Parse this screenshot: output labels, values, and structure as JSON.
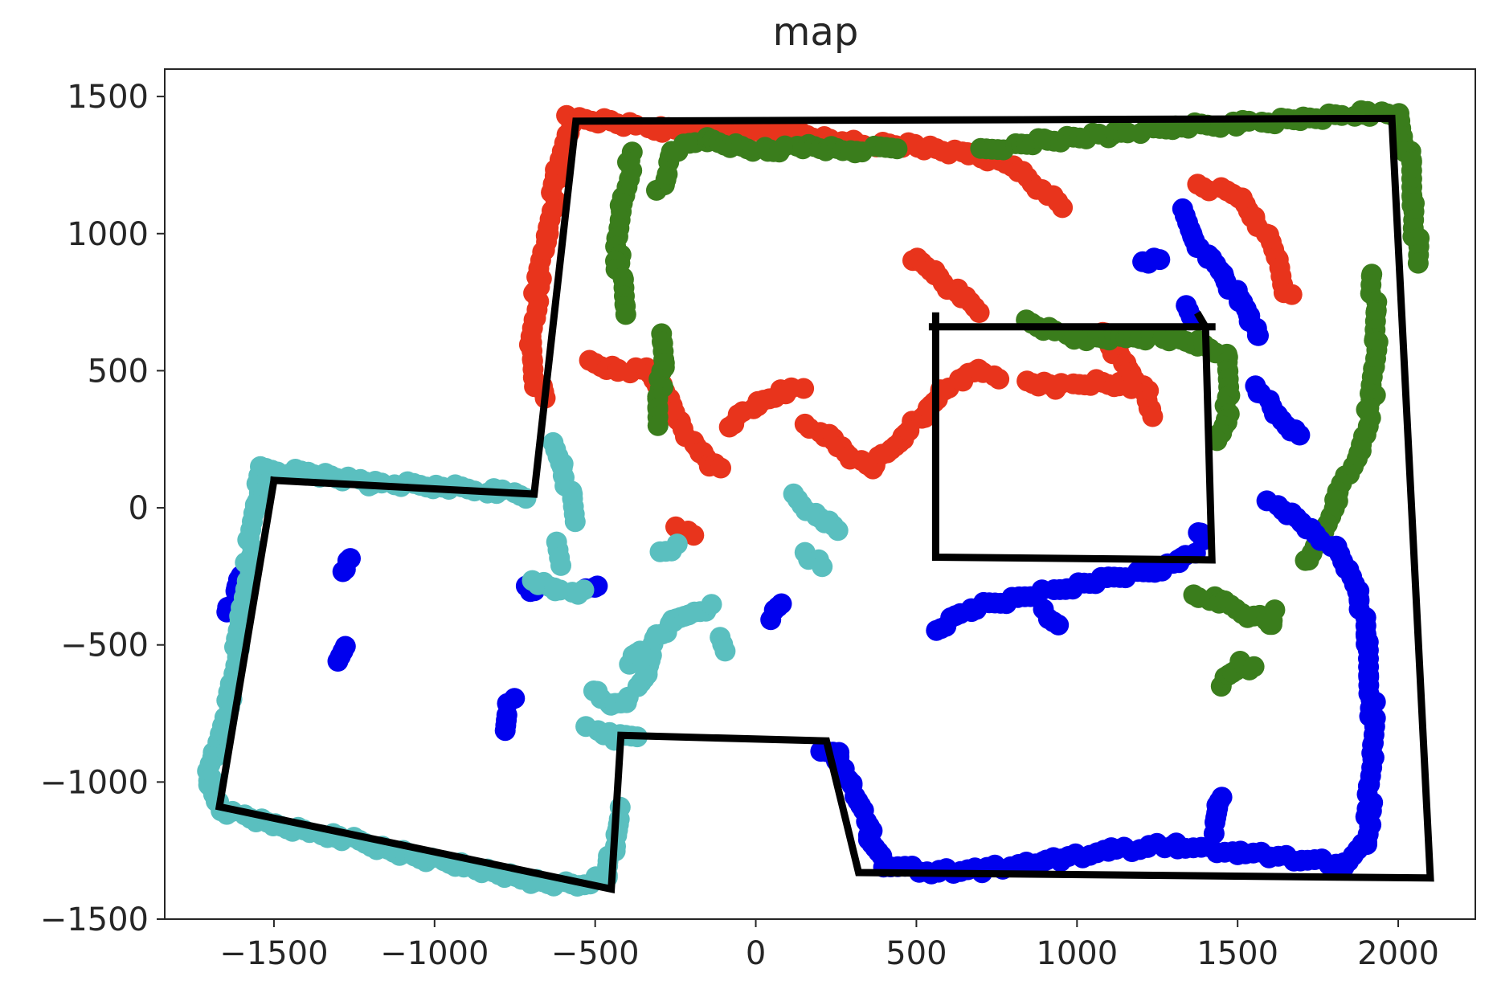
{
  "chart_data": {
    "type": "scatter",
    "title": "map",
    "xlabel": "",
    "ylabel": "",
    "xlim": [
      -1840,
      2240
    ],
    "ylim": [
      -1500,
      1600
    ],
    "xticks": [
      -1500,
      -1000,
      -500,
      0,
      500,
      1000,
      1500,
      2000
    ],
    "yticks": [
      1500,
      1000,
      500,
      0,
      -500,
      -1000,
      -1500
    ],
    "xtick_labels": [
      "−1500",
      "−1000",
      "−500",
      "0",
      "500",
      "1000",
      "1500",
      "2000"
    ],
    "ytick_labels": [
      "1500",
      "1000",
      "500",
      "0",
      "−500",
      "−1000",
      "−1500"
    ],
    "grid": false,
    "series": [
      {
        "color": "#e8341c",
        "trails": [
          [
            [
              -580,
              1420
            ],
            [
              -450,
              1410
            ],
            [
              -300,
              1380
            ],
            [
              -100,
              1370
            ],
            [
              100,
              1370
            ],
            [
              300,
              1330
            ],
            [
              500,
              1320
            ],
            [
              650,
              1290
            ],
            [
              800,
              1250
            ],
            [
              900,
              1150
            ],
            [
              950,
              1100
            ]
          ],
          [
            [
              -580,
              1400
            ],
            [
              -620,
              1200
            ],
            [
              -650,
              1000
            ],
            [
              -680,
              800
            ],
            [
              -700,
              600
            ],
            [
              -680,
              450
            ],
            [
              -660,
              400
            ]
          ],
          [
            [
              -520,
              530
            ],
            [
              -420,
              500
            ],
            [
              -340,
              500
            ],
            [
              -300,
              450
            ],
            [
              -240,
              330
            ],
            [
              -200,
              240
            ],
            [
              -140,
              160
            ],
            [
              -100,
              140
            ]
          ],
          [
            [
              -80,
              300
            ],
            [
              0,
              380
            ],
            [
              80,
              420
            ],
            [
              140,
              430
            ]
          ],
          [
            [
              160,
              300
            ],
            [
              240,
              250
            ],
            [
              300,
              180
            ],
            [
              360,
              150
            ],
            [
              400,
              190
            ],
            [
              460,
              260
            ],
            [
              520,
              340
            ],
            [
              580,
              420
            ],
            [
              640,
              470
            ],
            [
              700,
              500
            ],
            [
              750,
              480
            ]
          ],
          [
            [
              480,
              910
            ],
            [
              560,
              860
            ],
            [
              620,
              790
            ],
            [
              700,
              720
            ]
          ],
          [
            [
              840,
              460
            ],
            [
              940,
              440
            ],
            [
              1060,
              460
            ],
            [
              1140,
              450
            ],
            [
              1220,
              430
            ]
          ],
          [
            [
              1080,
              650
            ],
            [
              1120,
              570
            ],
            [
              1160,
              500
            ],
            [
              1200,
              440
            ],
            [
              1240,
              330
            ]
          ],
          [
            [
              1380,
              1180
            ],
            [
              1500,
              1140
            ],
            [
              1560,
              1050
            ],
            [
              1620,
              920
            ],
            [
              1660,
              770
            ]
          ],
          [
            [
              -240,
              -80
            ],
            [
              -200,
              -100
            ]
          ]
        ]
      },
      {
        "color": "#3a7d1c",
        "trails": [
          [
            [
              700,
              1300
            ],
            [
              900,
              1340
            ],
            [
              1100,
              1360
            ],
            [
              1300,
              1390
            ],
            [
              1500,
              1400
            ],
            [
              1700,
              1420
            ],
            [
              1900,
              1440
            ],
            [
              2000,
              1430
            ],
            [
              2030,
              1300
            ],
            [
              2050,
              1100
            ],
            [
              2060,
              900
            ]
          ],
          [
            [
              -380,
              1300
            ],
            [
              -420,
              1100
            ],
            [
              -430,
              900
            ],
            [
              -400,
              700
            ]
          ],
          [
            [
              -300,
              1150
            ],
            [
              -260,
              1300
            ],
            [
              -160,
              1340
            ],
            [
              40,
              1300
            ],
            [
              140,
              1320
            ],
            [
              300,
              1300
            ],
            [
              440,
              1320
            ]
          ],
          [
            [
              -300,
              640
            ],
            [
              -280,
              520
            ],
            [
              -310,
              400
            ],
            [
              -300,
              300
            ]
          ],
          [
            [
              840,
              680
            ],
            [
              1000,
              620
            ],
            [
              1160,
              620
            ],
            [
              1260,
              620
            ],
            [
              1380,
              600
            ],
            [
              1460,
              560
            ],
            [
              1480,
              420
            ],
            [
              1460,
              320
            ],
            [
              1440,
              240
            ]
          ],
          [
            [
              1920,
              860
            ],
            [
              1930,
              600
            ],
            [
              1920,
              400
            ],
            [
              1880,
              200
            ],
            [
              1820,
              60
            ],
            [
              1760,
              -100
            ],
            [
              1720,
              -200
            ]
          ],
          [
            [
              1370,
              -320
            ],
            [
              1440,
              -340
            ],
            [
              1560,
              -400
            ],
            [
              1600,
              -420
            ],
            [
              1620,
              -380
            ]
          ],
          [
            [
              1440,
              -640
            ],
            [
              1510,
              -570
            ],
            [
              1560,
              -590
            ]
          ]
        ]
      },
      {
        "color": "#0000ee",
        "trails": [
          [
            [
              1320,
              1080
            ],
            [
              1360,
              1000
            ],
            [
              1400,
              920
            ],
            [
              1460,
              850
            ],
            [
              1500,
              760
            ],
            [
              1540,
              700
            ],
            [
              1560,
              620
            ]
          ],
          [
            [
              1200,
              900
            ],
            [
              1260,
              900
            ]
          ],
          [
            [
              1340,
              730
            ],
            [
              1360,
              700
            ]
          ],
          [
            [
              1560,
              450
            ],
            [
              1620,
              330
            ],
            [
              1700,
              260
            ]
          ],
          [
            [
              1600,
              20
            ],
            [
              1700,
              -50
            ],
            [
              1800,
              -150
            ],
            [
              1880,
              -300
            ],
            [
              1900,
              -500
            ],
            [
              1920,
              -700
            ],
            [
              1920,
              -900
            ],
            [
              1910,
              -1100
            ],
            [
              1900,
              -1220
            ],
            [
              1840,
              -1300
            ],
            [
              1700,
              -1280
            ],
            [
              1500,
              -1260
            ],
            [
              1300,
              -1230
            ],
            [
              1100,
              -1250
            ],
            [
              900,
              -1290
            ],
            [
              700,
              -1320
            ],
            [
              540,
              -1330
            ],
            [
              400,
              -1300
            ],
            [
              360,
              -1200
            ],
            [
              300,
              -1000
            ],
            [
              250,
              -900
            ],
            [
              200,
              -880
            ]
          ],
          [
            [
              1420,
              -1180
            ],
            [
              1440,
              -1090
            ],
            [
              1460,
              -1050
            ]
          ],
          [
            [
              560,
              -450
            ],
            [
              680,
              -360
            ],
            [
              820,
              -330
            ],
            [
              960,
              -290
            ],
            [
              1100,
              -260
            ],
            [
              1240,
              -230
            ],
            [
              1320,
              -200
            ],
            [
              1360,
              -160
            ]
          ],
          [
            [
              1380,
              -80
            ],
            [
              1400,
              -120
            ]
          ],
          [
            [
              -1640,
              -380
            ],
            [
              -1620,
              -290
            ],
            [
              -1600,
              -250
            ]
          ],
          [
            [
              -1310,
              -570
            ],
            [
              -1280,
              -500
            ]
          ],
          [
            [
              -1290,
              -230
            ],
            [
              -1260,
              -190
            ]
          ],
          [
            [
              -780,
              -820
            ],
            [
              -760,
              -700
            ]
          ],
          [
            [
              -710,
              -280
            ],
            [
              -680,
              -310
            ]
          ],
          [
            [
              -520,
              -300
            ],
            [
              -500,
              -280
            ]
          ],
          [
            [
              40,
              -400
            ],
            [
              80,
              -350
            ]
          ],
          [
            [
              940,
              -430
            ],
            [
              900,
              -380
            ]
          ]
        ]
      },
      {
        "color": "#5abfbf",
        "trails": [
          [
            [
              -1540,
              140
            ],
            [
              -1400,
              130
            ],
            [
              -1200,
              90
            ],
            [
              -1000,
              80
            ],
            [
              -800,
              60
            ],
            [
              -720,
              40
            ]
          ],
          [
            [
              -1540,
              120
            ],
            [
              -1560,
              0
            ],
            [
              -1580,
              -200
            ],
            [
              -1600,
              -400
            ],
            [
              -1640,
              -700
            ],
            [
              -1680,
              -900
            ],
            [
              -1710,
              -1000
            ],
            [
              -1660,
              -1100
            ],
            [
              -1500,
              -1160
            ],
            [
              -1300,
              -1200
            ],
            [
              -1100,
              -1260
            ],
            [
              -900,
              -1310
            ],
            [
              -700,
              -1360
            ],
            [
              -560,
              -1380
            ],
            [
              -460,
              -1340
            ],
            [
              -440,
              -1200
            ],
            [
              -420,
              -1100
            ]
          ],
          [
            [
              -640,
              230
            ],
            [
              -600,
              150
            ],
            [
              -580,
              50
            ],
            [
              -560,
              -40
            ]
          ],
          [
            [
              -700,
              -260
            ],
            [
              -620,
              -300
            ],
            [
              -540,
              -310
            ]
          ],
          [
            [
              -620,
              -130
            ],
            [
              -600,
              -200
            ]
          ],
          [
            [
              -500,
              -660
            ],
            [
              -460,
              -720
            ],
            [
              -400,
              -700
            ],
            [
              -340,
              -600
            ],
            [
              -300,
              -460
            ],
            [
              -260,
              -420
            ],
            [
              -200,
              -380
            ],
            [
              -140,
              -360
            ]
          ],
          [
            [
              -520,
              -800
            ],
            [
              -440,
              -840
            ],
            [
              -360,
              -830
            ]
          ],
          [
            [
              -400,
              -560
            ],
            [
              -360,
              -520
            ]
          ],
          [
            [
              -300,
              -160
            ],
            [
              -240,
              -140
            ]
          ],
          [
            [
              120,
              40
            ],
            [
              180,
              -20
            ],
            [
              260,
              -80
            ]
          ],
          [
            [
              160,
              -160
            ],
            [
              200,
              -220
            ]
          ],
          [
            [
              -120,
              -480
            ],
            [
              -100,
              -520
            ]
          ]
        ]
      }
    ],
    "outline": {
      "color": "#000000",
      "polylines": [
        [
          [
            -1500,
            100
          ],
          [
            -690,
            50
          ],
          [
            -560,
            1410
          ],
          [
            1980,
            1420
          ],
          [
            2100,
            -1350
          ],
          [
            320,
            -1330
          ],
          [
            220,
            -850
          ],
          [
            -420,
            -830
          ],
          [
            -450,
            -1390
          ],
          [
            -1670,
            -1090
          ],
          [
            -1500,
            100
          ]
        ],
        [
          [
            560,
            700
          ],
          [
            560,
            -180
          ],
          [
            1420,
            -190
          ],
          [
            1400,
            660
          ],
          [
            1380,
            700
          ]
        ],
        [
          [
            550,
            660
          ],
          [
            1420,
            660
          ]
        ]
      ]
    }
  }
}
